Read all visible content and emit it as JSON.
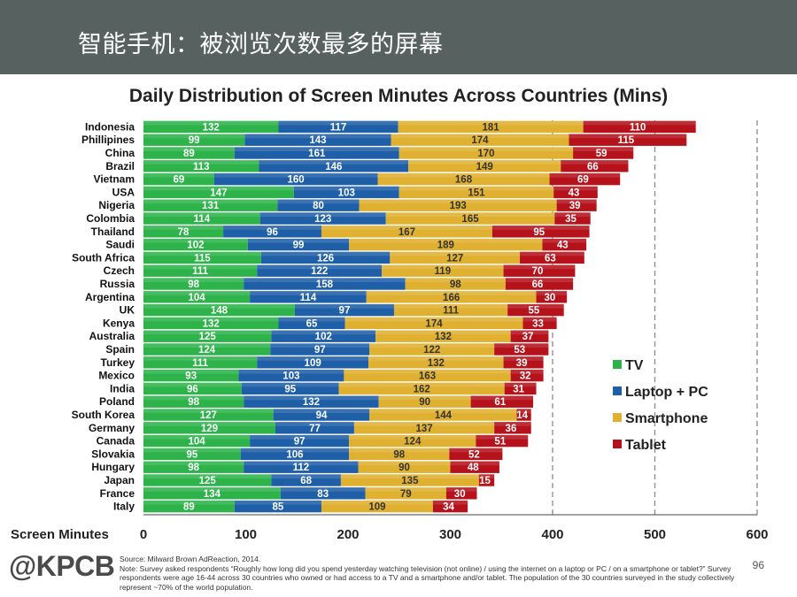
{
  "header": {
    "title": "智能手机：被浏览次数最多的屏幕"
  },
  "chart_data": {
    "type": "bar",
    "orientation": "horizontal",
    "stacked": true,
    "title": "Daily Distribution of Screen Minutes Across Countries (Mins)",
    "xlabel": "Screen Minutes",
    "xlim": [
      0,
      600
    ],
    "xticks": [
      0,
      100,
      200,
      300,
      400,
      500,
      600
    ],
    "dashed_gridlines_at": [
      400,
      500,
      600
    ],
    "legend_position": "right",
    "categories": [
      "Indonesia",
      "Phillipines",
      "China",
      "Brazil",
      "Vietnam",
      "USA",
      "Nigeria",
      "Colombia",
      "Thailand",
      "Saudi",
      "South Africa",
      "Czech",
      "Russia",
      "Argentina",
      "UK",
      "Kenya",
      "Australia",
      "Spain",
      "Turkey",
      "Mexico",
      "India",
      "Poland",
      "South Korea",
      "Germany",
      "Canada",
      "Slovakia",
      "Hungary",
      "Japan",
      "France",
      "Italy"
    ],
    "series": [
      {
        "name": "TV",
        "color": "#2db34a",
        "values": [
          132,
          99,
          89,
          113,
          69,
          147,
          131,
          114,
          78,
          102,
          115,
          111,
          98,
          104,
          148,
          132,
          125,
          124,
          111,
          93,
          96,
          98,
          127,
          129,
          104,
          95,
          98,
          125,
          134,
          89
        ]
      },
      {
        "name": "Laptop + PC",
        "color": "#1f5fa8",
        "values": [
          117,
          143,
          161,
          146,
          160,
          103,
          80,
          123,
          96,
          99,
          126,
          122,
          158,
          114,
          97,
          65,
          102,
          97,
          109,
          103,
          95,
          132,
          94,
          77,
          97,
          106,
          112,
          68,
          83,
          85
        ]
      },
      {
        "name": "Smartphone",
        "color": "#e0b130",
        "values": [
          181,
          174,
          170,
          149,
          168,
          151,
          193,
          165,
          167,
          189,
          127,
          119,
          98,
          166,
          111,
          174,
          132,
          122,
          132,
          163,
          162,
          90,
          144,
          137,
          124,
          98,
          90,
          135,
          79,
          109
        ]
      },
      {
        "name": "Tablet",
        "color": "#b5121b",
        "values": [
          110,
          115,
          59,
          66,
          69,
          43,
          39,
          35,
          95,
          43,
          63,
          70,
          66,
          30,
          55,
          33,
          37,
          53,
          39,
          32,
          31,
          61,
          14,
          36,
          51,
          52,
          48,
          15,
          30,
          34
        ]
      }
    ]
  },
  "footer": {
    "logo": "@KPCB",
    "source": "Source: Milward Brown AdReaction, 2014.",
    "note": "Note: Survey asked respondents “Roughly how long did you spend yesterday   watching television (not online) / using the internet on a laptop or PC / on a smartphone or tablet?” Survey respondents were age 16-44 across 30 countries who owned or had access to a TV and a smartphone and/or tablet. The population of the 30 countries surveyed in the study collectively represent ~70% of the world population.",
    "page_number": "96"
  }
}
